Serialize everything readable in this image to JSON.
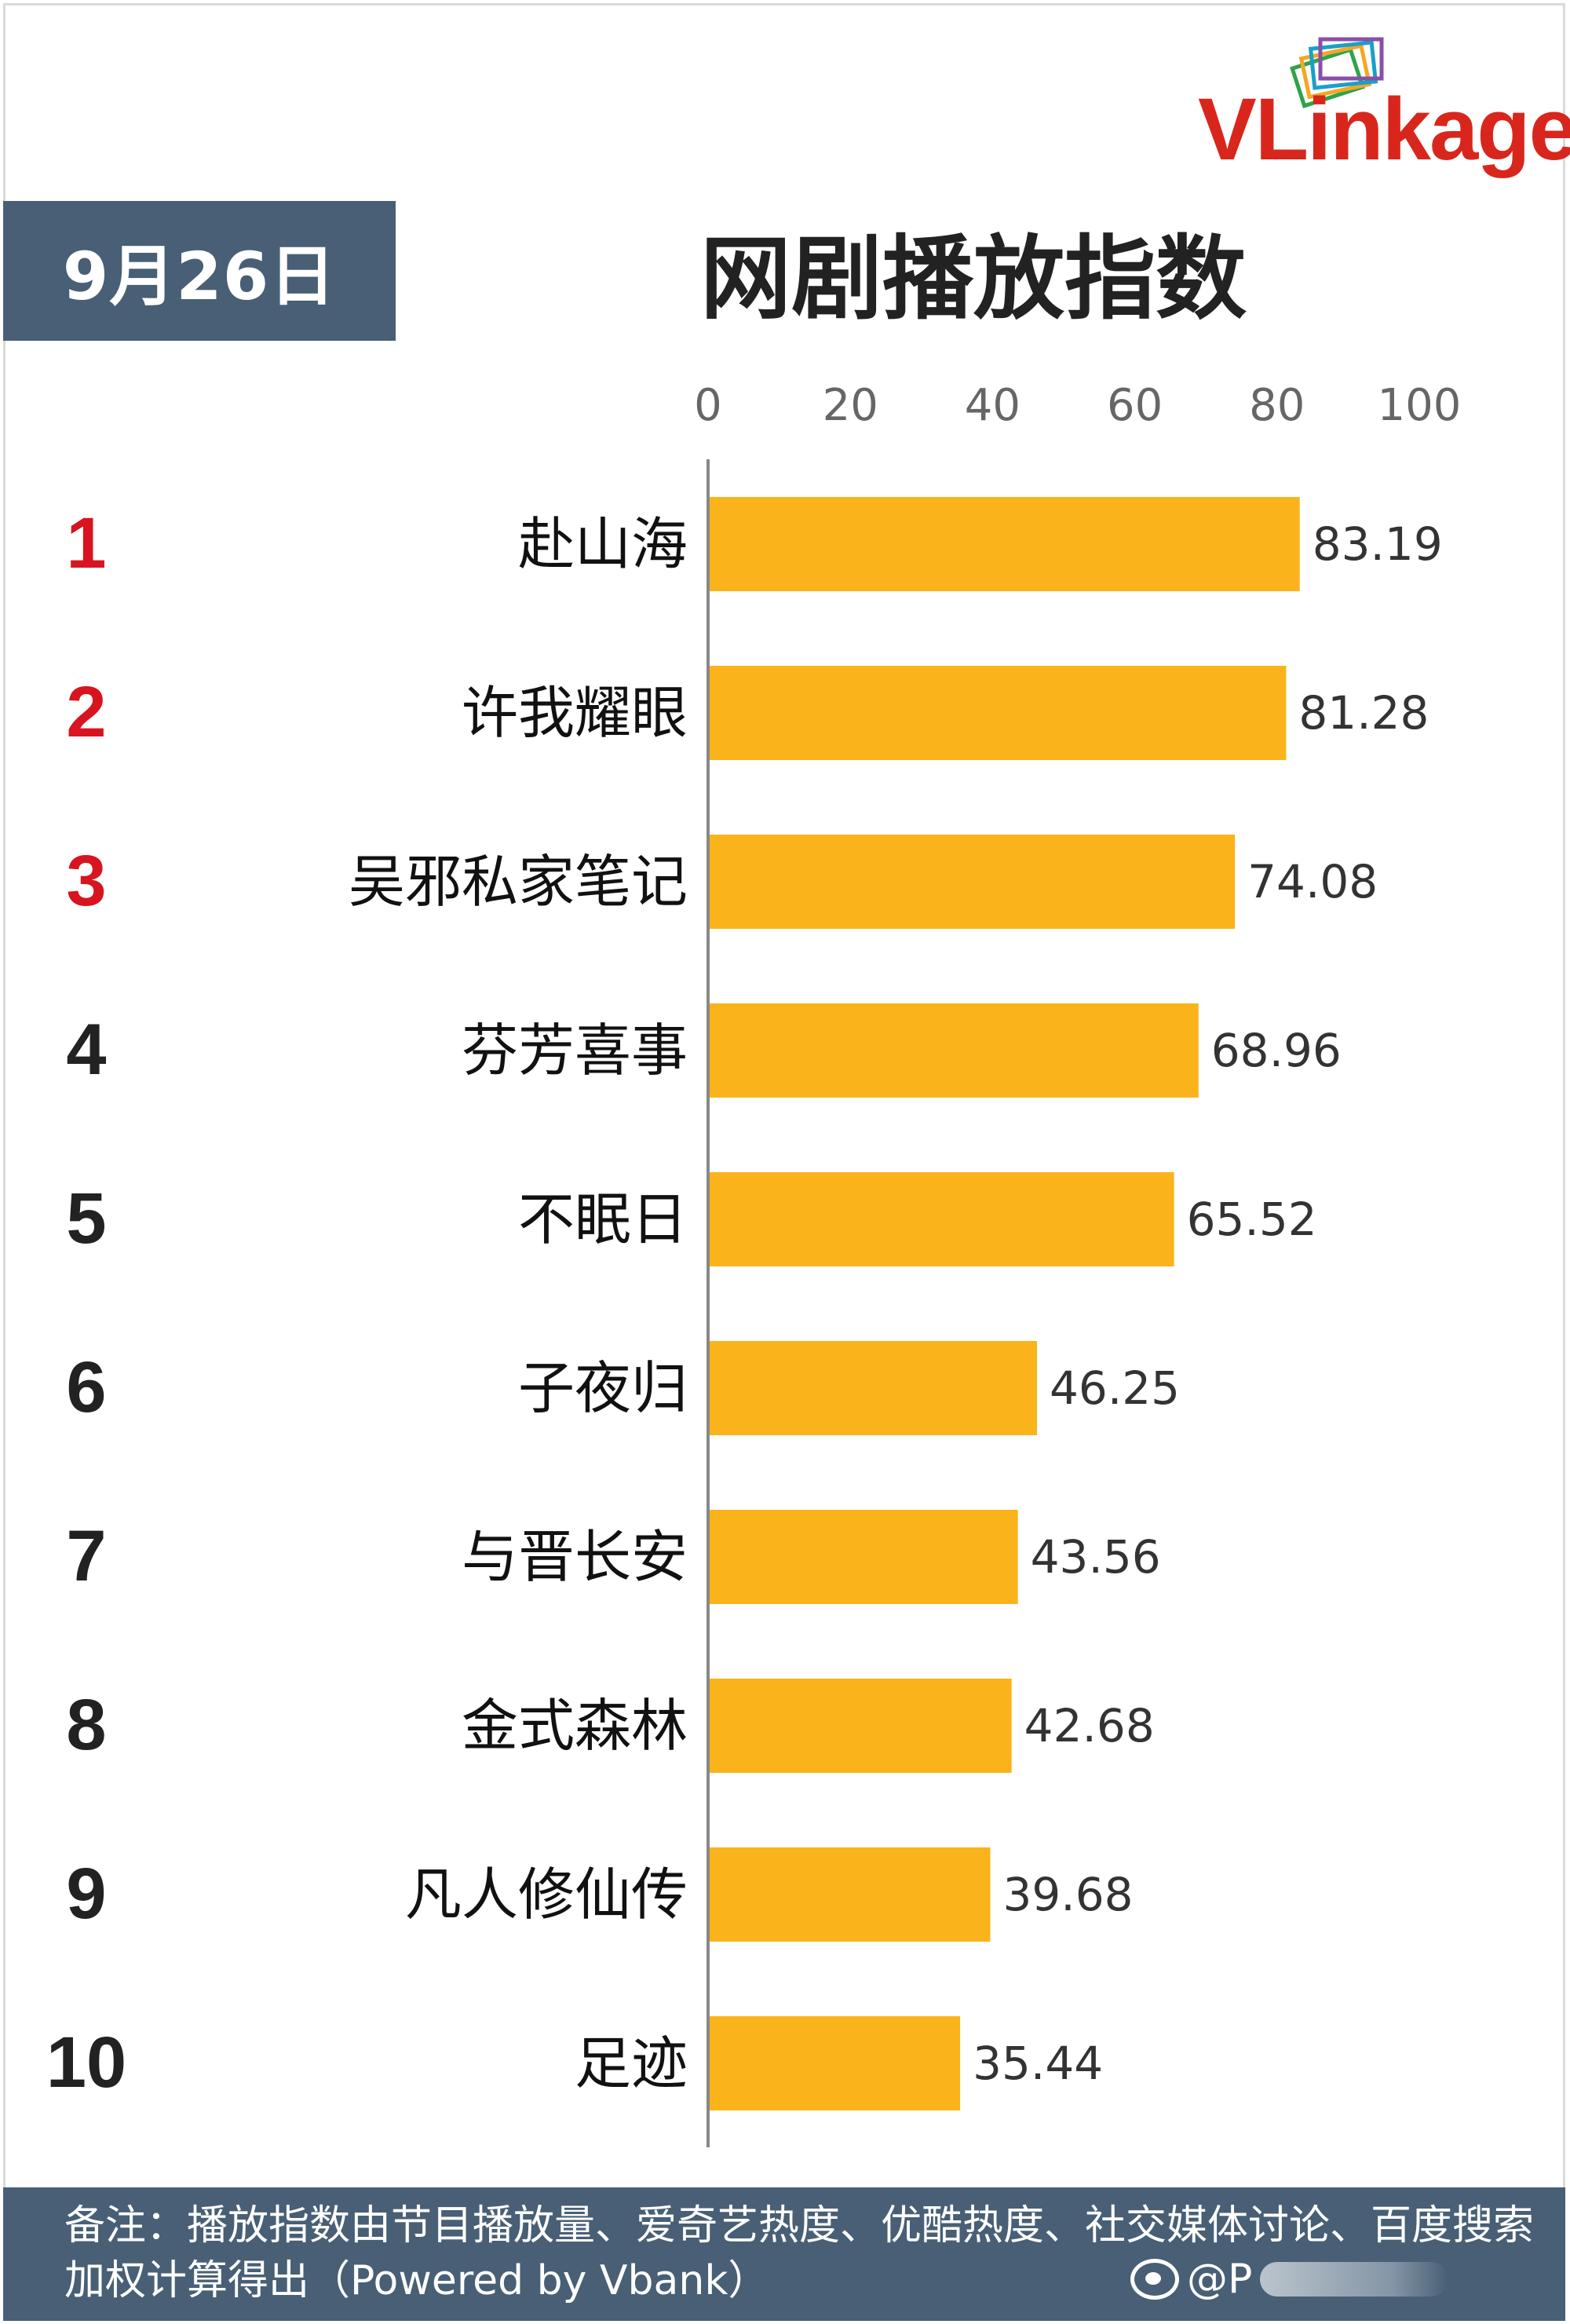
{
  "logo": {
    "text": "VLinkage"
  },
  "date_badge": "9月26日",
  "chart_data": {
    "type": "bar",
    "orientation": "horizontal",
    "title": "网剧播放指数",
    "categories": [
      "赴山海",
      "许我耀眼",
      "吴邪私家笔记",
      "芬芳喜事",
      "不眠日",
      "子夜归",
      "与晋长安",
      "金式森林",
      "凡人修仙传",
      "足迹"
    ],
    "ranks": [
      "1",
      "2",
      "3",
      "4",
      "5",
      "6",
      "7",
      "8",
      "9",
      "10"
    ],
    "values": [
      83.19,
      81.28,
      74.08,
      68.96,
      65.52,
      46.25,
      43.56,
      42.68,
      39.68,
      35.44
    ],
    "value_labels": [
      "83.19",
      "81.28",
      "74.08",
      "68.96",
      "65.52",
      "46.25",
      "43.56",
      "42.68",
      "39.68",
      "35.44"
    ],
    "xlim": [
      0,
      100
    ],
    "xticks": [
      "0",
      "20",
      "40",
      "60",
      "80",
      "100"
    ],
    "xaxis_position": "top",
    "grid": false,
    "legend": "none",
    "colors": {
      "bar": "#fbb31b",
      "rank_top3": "#d7141f",
      "rank_rest": "#222222",
      "axis": "#888888",
      "tick": "#666666"
    }
  },
  "footer": {
    "note": "备注：播放指数由节目播放量、爱奇艺热度、优酷热度、社交媒体讨论、百度搜索加权计算得出（Powered by Vbank）"
  },
  "watermark": {
    "icon": "weibo-icon",
    "text": "@P"
  }
}
